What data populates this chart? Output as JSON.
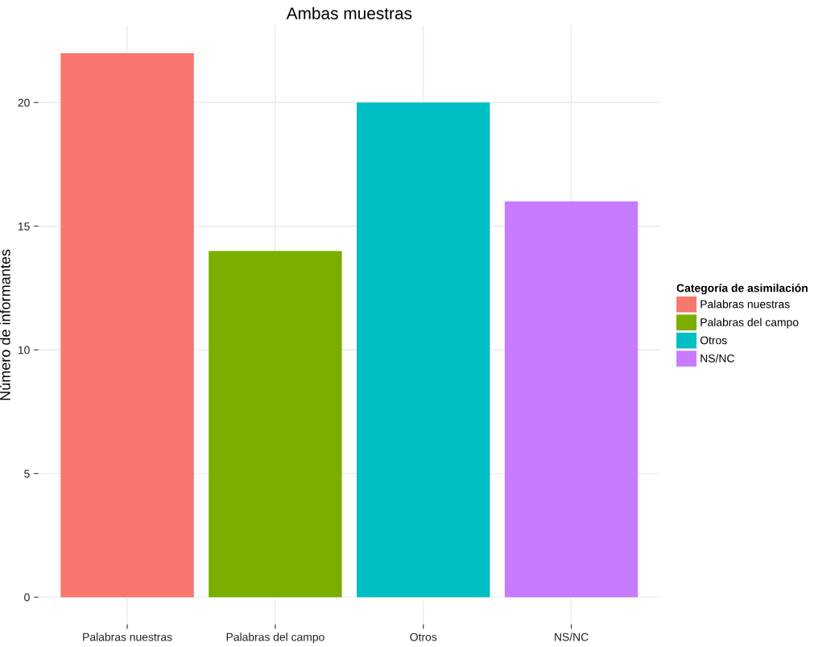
{
  "chart_data": {
    "type": "bar",
    "title": "Ambas muestras",
    "ylabel": "Número de informantes",
    "legend_title": "Categoría de asimilación",
    "categories": [
      "Palabras nuestras",
      "Palabras del campo",
      "Otros",
      "NS/NC"
    ],
    "series": [
      {
        "name": "Palabras nuestras",
        "color": "#f8766d",
        "values": [
          22,
          null,
          null,
          null
        ]
      },
      {
        "name": "Palabras del campo",
        "color": "#7cae00",
        "values": [
          null,
          14,
          null,
          null
        ]
      },
      {
        "name": "Otros",
        "color": "#00bfc4",
        "values": [
          null,
          null,
          20,
          null
        ]
      },
      {
        "name": "NS/NC",
        "color": "#c77cff",
        "values": [
          null,
          null,
          null,
          16
        ]
      }
    ],
    "ylim": [
      -1.1,
      23.1
    ],
    "yticks": [
      0,
      5,
      10,
      15,
      20
    ],
    "grid": true,
    "legend": "right"
  }
}
